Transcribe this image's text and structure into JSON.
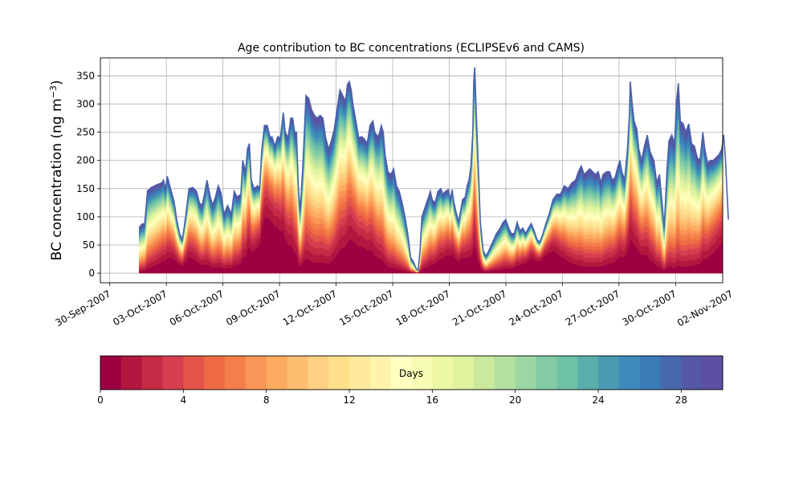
{
  "chart_data": {
    "type": "area",
    "title": "Age contribution to BC concentrations (ECLIPSEv6 and CAMS)",
    "xlabel": "",
    "ylabel": "BC concentration (ng m",
    "ylabel_sup": "−3",
    "ylabel_close": ")",
    "ylim": [
      -17,
      382
    ],
    "yticks": [
      0,
      50,
      100,
      150,
      200,
      250,
      300,
      350
    ],
    "xlim": [
      -0.5,
      32.5
    ],
    "xtick_labels": [
      "30-Sep-2007",
      "03-Oct-2007",
      "06-Oct-2007",
      "09-Oct-2007",
      "12-Oct-2007",
      "15-Oct-2007",
      "18-Oct-2007",
      "21-Oct-2007",
      "24-Oct-2007",
      "27-Oct-2007",
      "30-Oct-2007",
      "02-Nov-2007"
    ],
    "xtick_days": [
      0,
      3,
      6,
      9,
      12,
      15,
      18,
      21,
      24,
      27,
      30,
      33
    ],
    "grid": true,
    "total_series_name": "Total",
    "total": [
      [
        1.55,
        80
      ],
      [
        1.7,
        87
      ],
      [
        1.85,
        88
      ],
      [
        2.0,
        146
      ],
      [
        2.2,
        152
      ],
      [
        2.5,
        157
      ],
      [
        2.75,
        160
      ],
      [
        2.85,
        165
      ],
      [
        2.95,
        148
      ],
      [
        3.05,
        172
      ],
      [
        3.2,
        152
      ],
      [
        3.4,
        128
      ],
      [
        3.55,
        95
      ],
      [
        3.7,
        70
      ],
      [
        3.85,
        60
      ],
      [
        4.0,
        95
      ],
      [
        4.2,
        150
      ],
      [
        4.4,
        152
      ],
      [
        4.6,
        145
      ],
      [
        4.75,
        125
      ],
      [
        4.9,
        120
      ],
      [
        5.05,
        145
      ],
      [
        5.15,
        165
      ],
      [
        5.3,
        140
      ],
      [
        5.45,
        120
      ],
      [
        5.6,
        135
      ],
      [
        5.75,
        155
      ],
      [
        5.9,
        142
      ],
      [
        6.05,
        105
      ],
      [
        6.25,
        120
      ],
      [
        6.45,
        105
      ],
      [
        6.6,
        145
      ],
      [
        6.75,
        135
      ],
      [
        6.95,
        140
      ],
      [
        7.05,
        200
      ],
      [
        7.2,
        180
      ],
      [
        7.3,
        220
      ],
      [
        7.4,
        230
      ],
      [
        7.5,
        165
      ],
      [
        7.65,
        150
      ],
      [
        7.85,
        155
      ],
      [
        7.95,
        150
      ],
      [
        8.05,
        215
      ],
      [
        8.2,
        262
      ],
      [
        8.35,
        262
      ],
      [
        8.5,
        240
      ],
      [
        8.6,
        242
      ],
      [
        8.75,
        225
      ],
      [
        8.9,
        242
      ],
      [
        9.05,
        240
      ],
      [
        9.2,
        285
      ],
      [
        9.3,
        250
      ],
      [
        9.45,
        240
      ],
      [
        9.6,
        275
      ],
      [
        9.7,
        275
      ],
      [
        9.8,
        250
      ],
      [
        9.9,
        250
      ],
      [
        10.0,
        150
      ],
      [
        10.1,
        110
      ],
      [
        10.25,
        200
      ],
      [
        10.4,
        315
      ],
      [
        10.55,
        310
      ],
      [
        10.7,
        290
      ],
      [
        10.85,
        280
      ],
      [
        11.0,
        275
      ],
      [
        11.15,
        280
      ],
      [
        11.3,
        275
      ],
      [
        11.45,
        240
      ],
      [
        11.6,
        220
      ],
      [
        11.75,
        235
      ],
      [
        11.9,
        255
      ],
      [
        12.05,
        290
      ],
      [
        12.2,
        325
      ],
      [
        12.35,
        315
      ],
      [
        12.5,
        305
      ],
      [
        12.6,
        335
      ],
      [
        12.7,
        340
      ],
      [
        12.8,
        325
      ],
      [
        12.9,
        298
      ],
      [
        13.05,
        270
      ],
      [
        13.2,
        240
      ],
      [
        13.35,
        242
      ],
      [
        13.5,
        238
      ],
      [
        13.65,
        230
      ],
      [
        13.8,
        262
      ],
      [
        13.95,
        270
      ],
      [
        14.05,
        250
      ],
      [
        14.2,
        242
      ],
      [
        14.3,
        248
      ],
      [
        14.4,
        262
      ],
      [
        14.5,
        250
      ],
      [
        14.6,
        210
      ],
      [
        14.75,
        180
      ],
      [
        14.9,
        175
      ],
      [
        15.05,
        185
      ],
      [
        15.2,
        155
      ],
      [
        15.35,
        145
      ],
      [
        15.5,
        125
      ],
      [
        15.65,
        100
      ],
      [
        15.8,
        70
      ],
      [
        15.95,
        28
      ],
      [
        16.1,
        20
      ],
      [
        16.25,
        8
      ],
      [
        16.35,
        5
      ],
      [
        16.45,
        40
      ],
      [
        16.55,
        100
      ],
      [
        16.7,
        115
      ],
      [
        16.85,
        130
      ],
      [
        17.0,
        145
      ],
      [
        17.1,
        130
      ],
      [
        17.25,
        125
      ],
      [
        17.4,
        145
      ],
      [
        17.55,
        150
      ],
      [
        17.65,
        140
      ],
      [
        17.8,
        145
      ],
      [
        17.95,
        148
      ],
      [
        18.05,
        130
      ],
      [
        18.15,
        148
      ],
      [
        18.25,
        125
      ],
      [
        18.35,
        110
      ],
      [
        18.5,
        90
      ],
      [
        18.7,
        130
      ],
      [
        18.85,
        135
      ],
      [
        18.95,
        155
      ],
      [
        19.05,
        165
      ],
      [
        19.15,
        190
      ],
      [
        19.25,
        250
      ],
      [
        19.3,
        340
      ],
      [
        19.35,
        365
      ],
      [
        19.45,
        270
      ],
      [
        19.55,
        180
      ],
      [
        19.65,
        90
      ],
      [
        19.8,
        40
      ],
      [
        19.95,
        30
      ],
      [
        20.1,
        40
      ],
      [
        20.3,
        55
      ],
      [
        20.5,
        70
      ],
      [
        20.7,
        80
      ],
      [
        20.85,
        90
      ],
      [
        21.0,
        95
      ],
      [
        21.15,
        80
      ],
      [
        21.3,
        70
      ],
      [
        21.45,
        70
      ],
      [
        21.6,
        90
      ],
      [
        21.75,
        75
      ],
      [
        21.9,
        80
      ],
      [
        22.05,
        70
      ],
      [
        22.2,
        80
      ],
      [
        22.35,
        88
      ],
      [
        22.5,
        75
      ],
      [
        22.65,
        60
      ],
      [
        22.8,
        55
      ],
      [
        22.95,
        68
      ],
      [
        23.1,
        85
      ],
      [
        23.3,
        105
      ],
      [
        23.5,
        130
      ],
      [
        23.7,
        140
      ],
      [
        23.9,
        140
      ],
      [
        24.1,
        155
      ],
      [
        24.3,
        150
      ],
      [
        24.5,
        160
      ],
      [
        24.7,
        165
      ],
      [
        24.85,
        180
      ],
      [
        25.0,
        190
      ],
      [
        25.15,
        175
      ],
      [
        25.3,
        180
      ],
      [
        25.45,
        185
      ],
      [
        25.6,
        180
      ],
      [
        25.75,
        175
      ],
      [
        25.9,
        180
      ],
      [
        26.05,
        160
      ],
      [
        26.15,
        175
      ],
      [
        26.35,
        180
      ],
      [
        26.5,
        180
      ],
      [
        26.65,
        165
      ],
      [
        26.8,
        170
      ],
      [
        26.95,
        190
      ],
      [
        27.05,
        200
      ],
      [
        27.15,
        180
      ],
      [
        27.3,
        165
      ],
      [
        27.45,
        220
      ],
      [
        27.55,
        280
      ],
      [
        27.6,
        340
      ],
      [
        27.7,
        300
      ],
      [
        27.8,
        270
      ],
      [
        27.95,
        255
      ],
      [
        28.05,
        220
      ],
      [
        28.2,
        200
      ],
      [
        28.35,
        225
      ],
      [
        28.5,
        245
      ],
      [
        28.65,
        215
      ],
      [
        28.85,
        200
      ],
      [
        29.0,
        160
      ],
      [
        29.15,
        175
      ],
      [
        29.3,
        120
      ],
      [
        29.4,
        80
      ],
      [
        29.55,
        185
      ],
      [
        29.65,
        235
      ],
      [
        29.8,
        245
      ],
      [
        29.95,
        230
      ],
      [
        30.05,
        305
      ],
      [
        30.15,
        337
      ],
      [
        30.25,
        270
      ],
      [
        30.4,
        265
      ],
      [
        30.55,
        250
      ],
      [
        30.7,
        265
      ],
      [
        30.85,
        230
      ],
      [
        31.0,
        225
      ],
      [
        31.15,
        205
      ],
      [
        31.3,
        200
      ],
      [
        31.45,
        250
      ],
      [
        31.55,
        220
      ],
      [
        31.7,
        195
      ],
      [
        31.85,
        200
      ],
      [
        32.0,
        200
      ],
      [
        32.15,
        205
      ],
      [
        32.3,
        210
      ],
      [
        32.45,
        220
      ],
      [
        32.55,
        245
      ],
      [
        32.65,
        200
      ],
      [
        32.75,
        130
      ],
      [
        32.8,
        95
      ]
    ],
    "colorbar": {
      "label": "Days",
      "min": 0,
      "max": 30,
      "bins": 30,
      "ticks": [
        0,
        4,
        8,
        12,
        16,
        20,
        24,
        28
      ],
      "colors": [
        "#9e0142",
        "#b2183f",
        "#c52b44",
        "#d53e4f",
        "#e35549",
        "#ef6b43",
        "#f57f4a",
        "#f99556",
        "#fdab60",
        "#fdbe6f",
        "#fdd084",
        "#fee08b",
        "#fee99a",
        "#fff3ab",
        "#ffffbf",
        "#f7fcb4",
        "#ecf7a3",
        "#dff29e",
        "#cbe99c",
        "#b4e0a1",
        "#9cd6a4",
        "#82cba5",
        "#6ec2a5",
        "#5aafac",
        "#4a9ab2",
        "#3c8bbb",
        "#3a7cb8",
        "#4869ad",
        "#5558a4",
        "#5e4fa2"
      ]
    }
  }
}
